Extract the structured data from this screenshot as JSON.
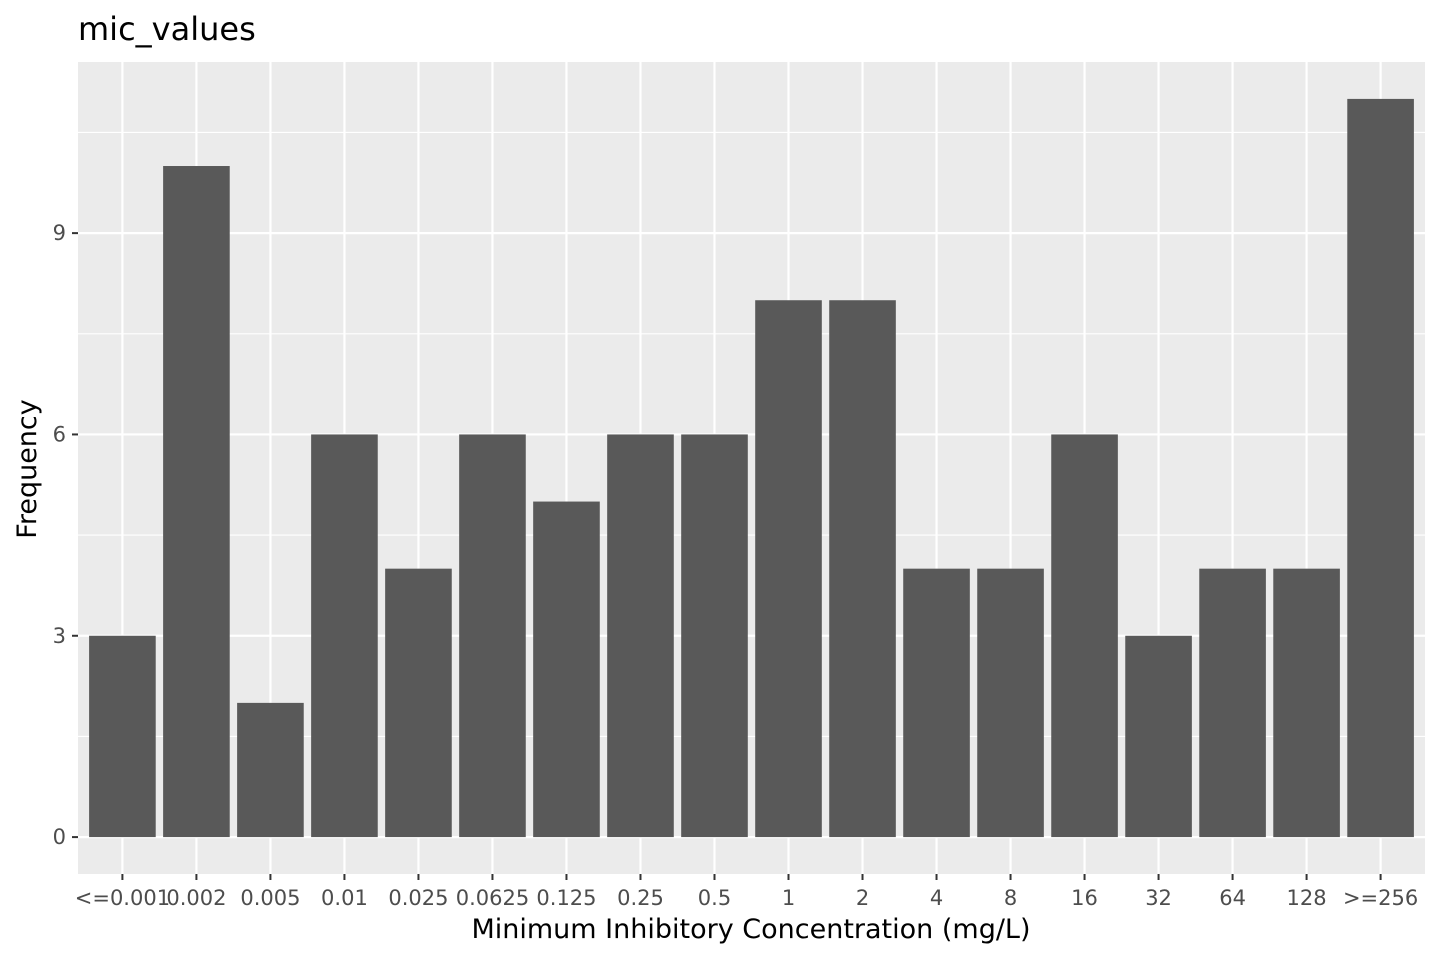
{
  "chart_data": {
    "type": "bar",
    "title": "mic_values",
    "xlabel": "Minimum Inhibitory Concentration (mg/L)",
    "ylabel": "Frequency",
    "categories": [
      "<=0.001",
      "0.002",
      "0.005",
      "0.01",
      "0.025",
      "0.0625",
      "0.125",
      "0.25",
      "0.5",
      "1",
      "2",
      "4",
      "8",
      "16",
      "32",
      "64",
      "128",
      ">=256"
    ],
    "values": [
      3,
      10,
      2,
      6,
      4,
      6,
      5,
      6,
      6,
      8,
      8,
      4,
      4,
      6,
      3,
      4,
      4,
      11
    ],
    "yticks": [
      0,
      3,
      6,
      9
    ],
    "ylim": [
      -0.55,
      11.55
    ],
    "grid": true,
    "legend": "none",
    "colors": {
      "bar": "#595959",
      "panel": "#ebebeb",
      "grid": "#ffffff",
      "tick_text": "#4d4d4d",
      "tick_mark": "#333333"
    }
  }
}
